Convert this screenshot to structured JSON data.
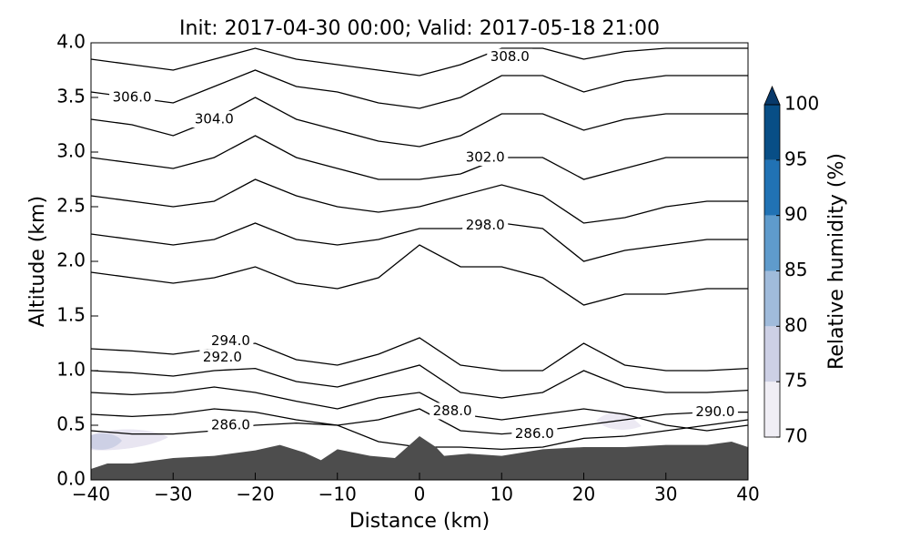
{
  "chart_data": {
    "type": "contour",
    "title": "Init: 2017-04-30 00:00; Valid: 2017-05-18 21:00",
    "xlabel": "Distance (km)",
    "ylabel": "Altitude (km)",
    "xlim": [
      -40,
      40
    ],
    "ylim": [
      0,
      4
    ],
    "xticks": [
      {
        "value": -40,
        "label": "−40"
      },
      {
        "value": -30,
        "label": "−30"
      },
      {
        "value": -20,
        "label": "−20"
      },
      {
        "value": -10,
        "label": "−10"
      },
      0,
      10,
      20,
      30,
      40
    ],
    "yticks": [
      {
        "value": 0,
        "label": "0.0"
      },
      0.5,
      {
        "value": 1,
        "label": "1.0"
      },
      1.5,
      {
        "value": 2,
        "label": "2.0"
      },
      2.5,
      {
        "value": 3,
        "label": "3.0"
      },
      3.5,
      {
        "value": 4,
        "label": "4.0"
      }
    ],
    "x": [
      -40,
      -35,
      -30,
      -25,
      -20,
      -15,
      -10,
      -5,
      0,
      5,
      10,
      15,
      20,
      25,
      30,
      35,
      40
    ],
    "contour_color": "#000000",
    "contours": [
      [
        0.45,
        0.42,
        0.42,
        0.45,
        0.5,
        0.52,
        0.5,
        0.35,
        0.3,
        0.3,
        0.28,
        0.3,
        0.38,
        0.4,
        0.45,
        0.5,
        0.55
      ],
      [
        0.6,
        0.58,
        0.6,
        0.65,
        0.62,
        0.55,
        0.5,
        0.55,
        0.65,
        0.45,
        0.42,
        0.45,
        0.5,
        0.55,
        0.6,
        0.62,
        0.62
      ],
      [
        0.8,
        0.78,
        0.8,
        0.85,
        0.8,
        0.72,
        0.65,
        0.75,
        0.8,
        0.6,
        0.55,
        0.6,
        0.65,
        0.6,
        0.5,
        0.45,
        0.5
      ],
      [
        1.0,
        0.98,
        0.95,
        1.0,
        1.02,
        0.9,
        0.85,
        0.95,
        1.05,
        0.8,
        0.75,
        0.8,
        1.0,
        0.85,
        0.8,
        0.8,
        0.82
      ],
      [
        1.2,
        1.18,
        1.15,
        1.2,
        1.25,
        1.1,
        1.05,
        1.15,
        1.3,
        1.05,
        1.0,
        1.0,
        1.25,
        1.05,
        1.0,
        1.0,
        1.02
      ],
      [
        1.9,
        1.85,
        1.8,
        1.85,
        1.95,
        1.8,
        1.75,
        1.85,
        2.15,
        1.95,
        1.95,
        1.85,
        1.6,
        1.7,
        1.7,
        1.75,
        1.75
      ],
      [
        2.25,
        2.2,
        2.15,
        2.2,
        2.35,
        2.2,
        2.15,
        2.2,
        2.3,
        2.3,
        2.35,
        2.3,
        2.0,
        2.1,
        2.15,
        2.2,
        2.2
      ],
      [
        2.6,
        2.55,
        2.5,
        2.55,
        2.75,
        2.6,
        2.5,
        2.45,
        2.5,
        2.6,
        2.7,
        2.6,
        2.35,
        2.4,
        2.5,
        2.55,
        2.55
      ],
      [
        2.95,
        2.9,
        2.85,
        2.95,
        3.15,
        2.95,
        2.85,
        2.75,
        2.75,
        2.8,
        2.95,
        2.95,
        2.75,
        2.85,
        2.95,
        2.95,
        2.95
      ],
      [
        3.3,
        3.25,
        3.15,
        3.3,
        3.5,
        3.3,
        3.2,
        3.1,
        3.05,
        3.15,
        3.35,
        3.35,
        3.2,
        3.3,
        3.35,
        3.35,
        3.35
      ],
      [
        3.55,
        3.5,
        3.45,
        3.6,
        3.75,
        3.6,
        3.55,
        3.45,
        3.4,
        3.5,
        3.7,
        3.7,
        3.55,
        3.65,
        3.7,
        3.7,
        3.7
      ],
      [
        3.85,
        3.8,
        3.75,
        3.85,
        3.95,
        3.85,
        3.8,
        3.75,
        3.7,
        3.8,
        3.95,
        3.95,
        3.85,
        3.92,
        3.95,
        3.95,
        3.95
      ]
    ],
    "contour_labels": [
      {
        "value": 308,
        "label": "308.0",
        "x": 11,
        "y": 3.87
      },
      {
        "value": 306,
        "label": "306.0",
        "x": -35,
        "y": 3.5
      },
      {
        "value": 304,
        "label": "304.0",
        "x": -25,
        "y": 3.3
      },
      {
        "value": 302,
        "label": "302.0",
        "x": 8,
        "y": 2.95
      },
      {
        "value": 298,
        "label": "298.0",
        "x": 8,
        "y": 2.33
      },
      {
        "value": 294,
        "label": "294.0",
        "x": -23,
        "y": 1.27
      },
      {
        "value": 292,
        "label": "292.0",
        "x": -24,
        "y": 1.12
      },
      {
        "value": 290,
        "label": "290.0",
        "x": 36,
        "y": 0.62
      },
      {
        "value": 288,
        "label": "288.0",
        "x": 4,
        "y": 0.63
      },
      {
        "value": 286,
        "label": "286.0",
        "x": -23,
        "y": 0.5
      },
      {
        "value": 286,
        "label": "286.0",
        "x": 14,
        "y": 0.42
      }
    ],
    "terrain": {
      "color": "#4d4d4d",
      "x": [
        -40,
        -38,
        -35,
        -30,
        -25,
        -20,
        -17,
        -14,
        -12,
        -10,
        -6,
        -3,
        0,
        2,
        3,
        6,
        10,
        15,
        20,
        25,
        30,
        35,
        38,
        40
      ],
      "y": [
        0.1,
        0.15,
        0.15,
        0.2,
        0.22,
        0.27,
        0.32,
        0.25,
        0.18,
        0.28,
        0.22,
        0.2,
        0.4,
        0.3,
        0.22,
        0.24,
        0.22,
        0.28,
        0.3,
        0.3,
        0.32,
        0.32,
        0.35,
        0.3
      ]
    },
    "colorbar": {
      "label": "Relative humidity (%)",
      "lim": [
        70,
        100
      ],
      "levels": [
        70,
        75,
        80,
        85,
        90,
        95,
        100
      ],
      "colors": [
        "#f0eef5",
        "#cdd0e5",
        "#a0bbdb",
        "#5f9bcc",
        "#2172b4",
        "#084e86"
      ],
      "extend_color": "#08396a",
      "ticks": [
        70,
        75,
        80,
        85,
        90,
        95,
        100
      ]
    }
  }
}
